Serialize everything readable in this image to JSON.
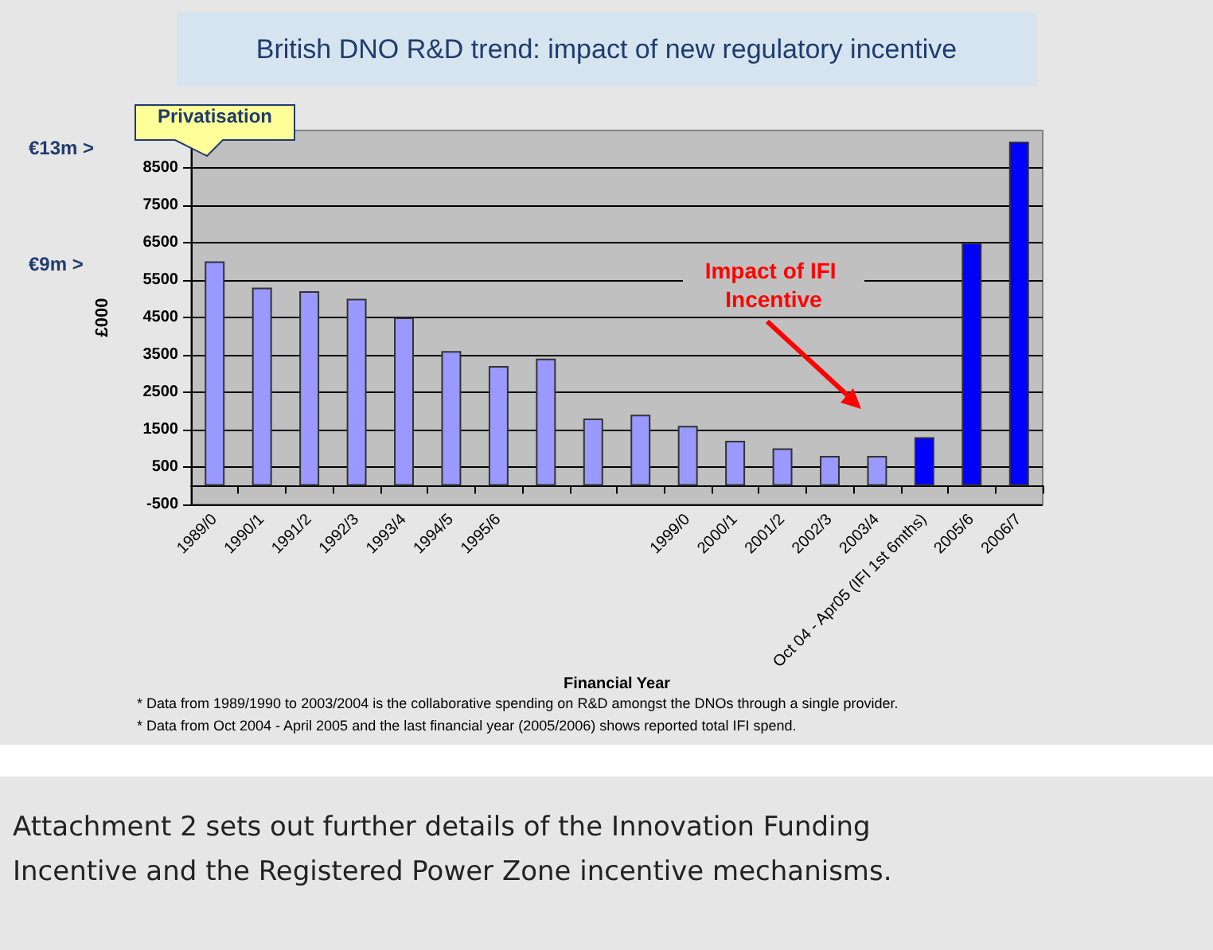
{
  "chart_data": {
    "type": "bar",
    "title": "British DNO R&D trend: impact of new regulatory incentive",
    "xlabel": "Financial Year",
    "ylabel": "£000",
    "categories": [
      "1989/0",
      "1990/1",
      "1991/2",
      "1992/3",
      "1993/4",
      "1994/5",
      "1995/6",
      null,
      null,
      null,
      "1999/0",
      "2000/1",
      "2001/2",
      "2002/3",
      "2003/4",
      "Oct 04 - Apr05 (IFI 1st 6mths)",
      "2005/6",
      "2006/7"
    ],
    "values": [
      6000,
      5300,
      5200,
      5000,
      4500,
      3600,
      3200,
      3400,
      1800,
      1900,
      1600,
      1200,
      1000,
      800,
      800,
      1300,
      6500,
      9200
    ],
    "colors": [
      "#9999ff",
      "#9999ff",
      "#9999ff",
      "#9999ff",
      "#9999ff",
      "#9999ff",
      "#9999ff",
      "#9999ff",
      "#9999ff",
      "#9999ff",
      "#9999ff",
      "#9999ff",
      "#9999ff",
      "#9999ff",
      "#9999ff",
      "#0000ff",
      "#0000ff",
      "#0000ff"
    ],
    "ylim": [
      -500,
      9500
    ],
    "yticks": [
      -500,
      500,
      1500,
      2500,
      3500,
      4500,
      5500,
      6500,
      7500,
      8500
    ],
    "grid": "y",
    "annotations": [
      "€13m >",
      "€9m >",
      "Privatisation",
      "Impact of IFI Incentive",
      "* Data from 1989/1990 to 2003/2004 is the collaborative spending on R&D amongst the DNOs through a single provider.",
      "* Data from Oct 2004 - April 2005 and the last financial year (2005/2006) shows reported total IFI spend.",
      "Attachment 2 sets out further details of the Innovation Funding Incentive and the Registered Power Zone incentive mechanisms."
    ]
  }
}
